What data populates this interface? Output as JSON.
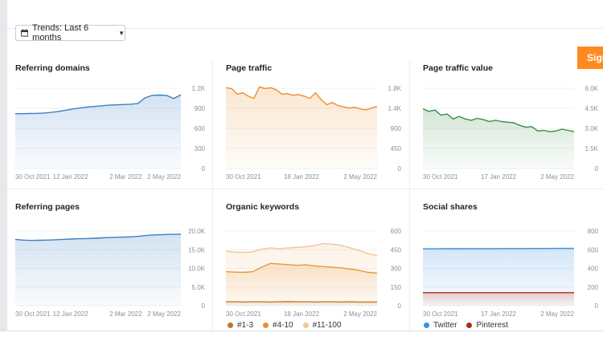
{
  "toolbar": {
    "trends_label": "Trends: Last 6 months",
    "calendar_icon": "calendar-icon",
    "caret_icon": "caret-down-icon"
  },
  "signup": {
    "label": "Sign"
  },
  "colors": {
    "blue": "#3b7fc4",
    "orange": "#e8902a",
    "green": "#3a8c45",
    "red": "#b5281c",
    "light_orange": "#f3c594",
    "dark_orange": "#c4752d"
  },
  "charts": {
    "referring_domains": {
      "title": "Referring domains",
      "chart_data": {
        "type": "area",
        "color": "#3b7fc4",
        "x_labels": [
          "30 Oct 2021",
          "12 Jan 2022",
          "2 Mar 2022",
          "2 May 2022"
        ],
        "y_ticks": [
          "1.2K",
          "900",
          "600",
          "300",
          "0"
        ],
        "ylim": [
          0,
          1350
        ],
        "series": [
          {
            "values": [
              870,
              870,
              872,
              875,
              880,
              890,
              905,
              925,
              945,
              960,
              975,
              985,
              995,
              1005,
              1010,
              1015,
              1020,
              1030,
              1120,
              1160,
              1165,
              1160,
              1110,
              1170
            ]
          }
        ]
      }
    },
    "page_traffic": {
      "title": "Page traffic",
      "chart_data": {
        "type": "area",
        "color": "#e8902a",
        "x_labels": [
          "30 Oct 2021",
          "18 Jan 2022",
          "2 May 2022"
        ],
        "y_ticks": [
          "1.8K",
          "1.4K",
          "900",
          "450",
          "0"
        ],
        "ylim": [
          0,
          2000
        ],
        "series": [
          {
            "values": [
              1900,
              1880,
              1750,
              1780,
              1700,
              1650,
              1920,
              1880,
              1900,
              1850,
              1750,
              1760,
              1720,
              1740,
              1700,
              1650,
              1780,
              1620,
              1500,
              1550,
              1480,
              1450,
              1420,
              1440,
              1400,
              1380,
              1420,
              1460
            ]
          }
        ]
      }
    },
    "page_traffic_value": {
      "title": "Page traffic value",
      "chart_data": {
        "type": "area",
        "color": "#3a8c45",
        "x_labels": [
          "30 Oct 2021",
          "17 Jan 2022",
          "2 May 2022"
        ],
        "y_ticks": [
          "6.0K",
          "4.5K",
          "3.0K",
          "1.5K",
          "0"
        ],
        "ylim": [
          0,
          6700
        ],
        "series": [
          {
            "values": [
              4700,
              4500,
              4600,
              4200,
              4300,
              3900,
              4100,
              3900,
              3800,
              3950,
              3850,
              3700,
              3800,
              3700,
              3650,
              3600,
              3400,
              3250,
              3300,
              2950,
              3000,
              2900,
              2950,
              3100,
              3000,
              2900
            ]
          }
        ]
      }
    },
    "referring_pages": {
      "title": "Referring pages",
      "chart_data": {
        "type": "area",
        "color": "#3b7fc4",
        "x_labels": [
          "30 Oct 2021",
          "12 Jan 2022",
          "2 Mar 2022",
          "2 May 2022"
        ],
        "y_ticks": [
          "20.0K",
          "15.0K",
          "10.0K",
          "5.0K",
          "0"
        ],
        "ylim": [
          0,
          23500
        ],
        "series": [
          {
            "values": [
              19600,
              19400,
              19300,
              19350,
              19400,
              19500,
              19600,
              19700,
              19800,
              19850,
              19950,
              20050,
              20150,
              20250,
              20300,
              20400,
              20600,
              20850,
              20950,
              21050,
              21100,
              21150
            ]
          }
        ]
      }
    },
    "organic_keywords": {
      "title": "Organic keywords",
      "chart_data": {
        "type": "area",
        "x_labels": [
          "30 Oct 2021",
          "18 Jan 2022",
          "2 May 2022"
        ],
        "y_ticks": [
          "600",
          "450",
          "300",
          "150",
          "0"
        ],
        "ylim": [
          0,
          620
        ],
        "series": [
          {
            "name": "#1-3",
            "color": "#c4752d",
            "values": [
              30,
              30,
              29,
              30,
              30,
              29,
              30,
              31,
              30,
              30,
              29,
              30,
              30,
              29,
              30,
              29,
              28,
              29
            ]
          },
          {
            "name": "#4-10",
            "color": "#e8902a",
            "values": [
              265,
              262,
              260,
              265,
              300,
              330,
              325,
              320,
              315,
              318,
              310,
              305,
              300,
              295,
              285,
              275,
              260,
              255
            ]
          },
          {
            "name": "#11-100",
            "color": "#f3c594",
            "values": [
              425,
              418,
              415,
              420,
              440,
              450,
              445,
              450,
              455,
              460,
              470,
              485,
              480,
              470,
              450,
              430,
              405,
              390
            ]
          }
        ]
      }
    },
    "social_shares": {
      "title": "Social shares",
      "chart_data": {
        "type": "area",
        "x_labels": [
          "30 Oct 2021",
          "17 Jan 2022",
          "2 May 2022"
        ],
        "y_ticks": [
          "800",
          "600",
          "400",
          "200",
          "0"
        ],
        "ylim": [
          0,
          950
        ],
        "series": [
          {
            "name": "Twitter",
            "color": "#3a91e0",
            "values": [
              680,
              680,
              681,
              681,
              682,
              682,
              683,
              683,
              684,
              684,
              685,
              685
            ]
          },
          {
            "name": "Pinterest",
            "color": "#b5281c",
            "values": [
              155,
              155,
              155,
              155,
              155,
              155,
              155,
              155,
              155,
              155,
              155,
              155
            ]
          }
        ]
      }
    }
  }
}
